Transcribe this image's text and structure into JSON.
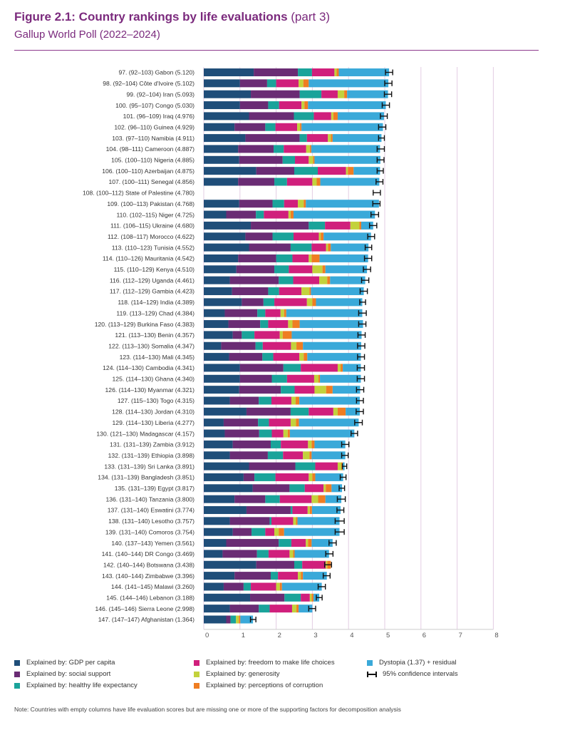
{
  "title": {
    "main": "Figure 2.1: Country rankings by life evaluations",
    "part": "(part 3)",
    "subtitle": "Gallup World Poll (2022–2024)"
  },
  "legend": {
    "items": [
      {
        "label": "Explained by: GDP per capita",
        "color": "#1f4e79"
      },
      {
        "label": "Explained by: social support",
        "color": "#6a2c74"
      },
      {
        "label": "Explained by: healthy life expectancy",
        "color": "#1aa39a"
      },
      {
        "label": "Explained by: freedom to make life choices",
        "color": "#d01f7c"
      },
      {
        "label": "Explained by: generosity",
        "color": "#c3d23c"
      },
      {
        "label": "Explained by: perceptions of corruption",
        "color": "#ef7d22"
      },
      {
        "label": "Dystopia (1.37) + residual",
        "color": "#3aa9d9"
      },
      {
        "label": "95% confidence intervals",
        "color": "#111111"
      }
    ]
  },
  "note": "Note: Countries with empty columns have life evaluation scores but are missing one or more of the supporting factors for decomposition analysis",
  "chart_data": {
    "type": "bar",
    "orientation": "horizontal",
    "stacked": true,
    "xlim": [
      0,
      8
    ],
    "xticks": [
      "0",
      "1",
      "2",
      "3",
      "4",
      "5",
      "6",
      "7",
      "8"
    ],
    "grid": true,
    "legend_placement": "bottom",
    "components": [
      "GDP per capita",
      "social support",
      "healthy life expectancy",
      "freedom to make life choices",
      "generosity",
      "perceptions of corruption",
      "Dystopia (1.37) + residual"
    ],
    "colors": [
      "#1f4e79",
      "#6a2c74",
      "#1aa39a",
      "#d01f7c",
      "#c3d23c",
      "#ef7d22",
      "#3aa9d9"
    ],
    "rows": [
      {
        "label": "97.   (92–103)  Gabon (5.120)",
        "score": 5.12,
        "ci": [
          5.02,
          5.22
        ],
        "parts": [
          1.38,
          1.22,
          0.39,
          0.62,
          0.06,
          0.06,
          1.39
        ]
      },
      {
        "label": "98.   (92–104)  Côte d'Ivoire (5.102)",
        "score": 5.102,
        "ci": [
          5.0,
          5.2
        ],
        "parts": [
          1.0,
          0.75,
          0.25,
          0.62,
          0.13,
          0.15,
          2.2
        ]
      },
      {
        "label": "99.   (92–104)  Iran (5.093)",
        "score": 5.093,
        "ci": [
          4.99,
          5.19
        ],
        "parts": [
          1.3,
          1.35,
          0.6,
          0.45,
          0.18,
          0.08,
          1.13
        ]
      },
      {
        "label": "100.  (95–107)  Congo (5.030)",
        "score": 5.03,
        "ci": [
          4.93,
          5.13
        ],
        "parts": [
          1.0,
          0.78,
          0.3,
          0.62,
          0.08,
          0.1,
          2.15
        ]
      },
      {
        "label": "101.  (96–109)  Iraq (4.976)",
        "score": 4.976,
        "ci": [
          4.88,
          5.07
        ],
        "parts": [
          1.25,
          1.24,
          0.55,
          0.48,
          0.06,
          0.12,
          1.28
        ]
      },
      {
        "label": "102.  (96–110)  Guinea (4.929)",
        "score": 4.929,
        "ci": [
          4.83,
          5.03
        ],
        "parts": [
          0.85,
          0.85,
          0.28,
          0.6,
          0.08,
          0.04,
          2.25
        ]
      },
      {
        "label": "103.  (97–110)  Namibia (4.911)",
        "score": 4.911,
        "ci": [
          4.83,
          4.99
        ],
        "parts": [
          1.15,
          1.5,
          0.2,
          0.58,
          0.08,
          0.05,
          1.35
        ]
      },
      {
        "label": "104.  (98–111)  Cameroon (4.887)",
        "score": 4.887,
        "ci": [
          4.79,
          4.99
        ],
        "parts": [
          0.95,
          0.98,
          0.28,
          0.62,
          0.1,
          0.04,
          1.9
        ]
      },
      {
        "label": "105.  (100–110)  Nigeria (4.885)",
        "score": 4.885,
        "ci": [
          4.79,
          4.98
        ],
        "parts": [
          0.98,
          1.2,
          0.34,
          0.38,
          0.12,
          0.04,
          1.82
        ]
      },
      {
        "label": "106.  (100–110)  Azerbaijan (4.875)",
        "score": 4.875,
        "ci": [
          4.79,
          4.96
        ],
        "parts": [
          1.45,
          1.05,
          0.65,
          0.78,
          0.05,
          0.16,
          0.73
        ]
      },
      {
        "label": "107.  (100–111)  Senegal (4.856)",
        "score": 4.856,
        "ci": [
          4.76,
          4.95
        ],
        "parts": [
          0.95,
          1.0,
          0.35,
          0.7,
          0.12,
          0.1,
          1.63
        ]
      },
      {
        "label": "108.  (100–112)  State of Palestine (4.780)",
        "score": 4.78,
        "ci": [
          4.68,
          4.88
        ],
        "parts": []
      },
      {
        "label": "109.  (100–113)  Pakistan (4.768)",
        "score": 4.768,
        "ci": [
          4.67,
          4.87
        ],
        "parts": [
          0.98,
          0.92,
          0.32,
          0.38,
          0.16,
          0.06,
          2.02
        ]
      },
      {
        "label": "110.  (102–115)  Niger (4.725)",
        "score": 4.725,
        "ci": [
          4.62,
          4.83
        ],
        "parts": [
          0.62,
          0.82,
          0.22,
          0.68,
          0.06,
          0.08,
          2.25
        ]
      },
      {
        "label": "111.  (106–115)  Ukraine (4.680)",
        "score": 4.68,
        "ci": [
          4.58,
          4.78
        ],
        "parts": [
          1.3,
          1.6,
          0.45,
          0.7,
          0.25,
          0.05,
          0.33
        ]
      },
      {
        "label": "112.  (108–117)  Morocco (4.622)",
        "score": 4.622,
        "ci": [
          4.53,
          4.72
        ],
        "parts": [
          1.15,
          0.75,
          0.58,
          0.7,
          0.05,
          0.08,
          1.31
        ]
      },
      {
        "label": "113.  (110–123)  Tunisia (4.552)",
        "score": 4.552,
        "ci": [
          4.46,
          4.64
        ],
        "parts": [
          1.25,
          1.15,
          0.58,
          0.4,
          0.05,
          0.08,
          1.04
        ]
      },
      {
        "label": "114.  (110–126)  Mauritania (4.542)",
        "score": 4.542,
        "ci": [
          4.44,
          4.64
        ],
        "parts": [
          0.95,
          1.05,
          0.45,
          0.45,
          0.08,
          0.22,
          1.34
        ]
      },
      {
        "label": "115.  (110–129)  Kenya (4.510)",
        "score": 4.51,
        "ci": [
          4.41,
          4.61
        ],
        "parts": [
          0.9,
          1.05,
          0.4,
          0.65,
          0.28,
          0.08,
          1.15
        ]
      },
      {
        "label": "116.  (112–129)  Uganda (4.461)",
        "score": 4.461,
        "ci": [
          4.36,
          4.56
        ],
        "parts": [
          0.72,
          1.35,
          0.4,
          0.72,
          0.22,
          0.08,
          0.97
        ]
      },
      {
        "label": "117.  (112–129)  Gambia (4.423)",
        "score": 4.423,
        "ci": [
          4.32,
          4.52
        ],
        "parts": [
          0.78,
          1.0,
          0.3,
          0.62,
          0.22,
          0.04,
          1.46
        ]
      },
      {
        "label": "118.  (114–129)  India (4.389)",
        "score": 4.389,
        "ci": [
          4.31,
          4.47
        ],
        "parts": [
          1.05,
          0.6,
          0.3,
          0.9,
          0.15,
          0.1,
          1.28
        ]
      },
      {
        "label": "119.  (113–129)  Chad (4.384)",
        "score": 4.384,
        "ci": [
          4.28,
          4.49
        ],
        "parts": [
          0.58,
          0.9,
          0.22,
          0.42,
          0.1,
          0.06,
          2.1
        ]
      },
      {
        "label": "120.  (113–129)  Burkina Faso (4.383)",
        "score": 4.383,
        "ci": [
          4.28,
          4.48
        ],
        "parts": [
          0.68,
          0.88,
          0.22,
          0.55,
          0.12,
          0.2,
          1.75
        ]
      },
      {
        "label": "121.  (113–130)  Benin (4.357)",
        "score": 4.357,
        "ci": [
          4.26,
          4.46
        ],
        "parts": [
          0.8,
          0.25,
          0.35,
          0.7,
          0.08,
          0.25,
          1.93
        ]
      },
      {
        "label": "122.  (113–130)  Somalia (4.347)",
        "score": 4.347,
        "ci": [
          4.25,
          4.45
        ],
        "parts": [
          0.48,
          0.95,
          0.2,
          0.78,
          0.15,
          0.18,
          1.61
        ]
      },
      {
        "label": "123.  (114–130)  Mali (4.345)",
        "score": 4.345,
        "ci": [
          4.25,
          4.44
        ],
        "parts": [
          0.7,
          0.92,
          0.3,
          0.72,
          0.12,
          0.1,
          1.48
        ]
      },
      {
        "label": "124.  (114–130)  Cambodia (4.341)",
        "score": 4.341,
        "ci": [
          4.24,
          4.44
        ],
        "parts": [
          1.0,
          1.2,
          0.48,
          1.02,
          0.08,
          0.06,
          0.5
        ]
      },
      {
        "label": "125.  (114–130)  Ghana (4.340)",
        "score": 4.34,
        "ci": [
          4.24,
          4.44
        ],
        "parts": [
          1.0,
          0.88,
          0.42,
          0.75,
          0.12,
          0.04,
          1.13
        ]
      },
      {
        "label": "126.  (114–130)  Myanmar (4.321)",
        "score": 4.321,
        "ci": [
          4.22,
          4.42
        ],
        "parts": [
          0.98,
          1.15,
          0.38,
          0.55,
          0.32,
          0.18,
          0.76
        ]
      },
      {
        "label": "127.  (115–130)  Togo (4.315)",
        "score": 4.315,
        "ci": [
          4.22,
          4.41
        ],
        "parts": [
          0.72,
          0.8,
          0.35,
          0.55,
          0.12,
          0.1,
          1.67
        ]
      },
      {
        "label": "128.  (114–130)  Jordan (4.310)",
        "score": 4.31,
        "ci": [
          4.21,
          4.41
        ],
        "parts": [
          1.18,
          1.22,
          0.5,
          0.68,
          0.12,
          0.22,
          0.39
        ]
      },
      {
        "label": "129.  (114–130)  Liberia (4.277)",
        "score": 4.277,
        "ci": [
          4.17,
          4.38
        ],
        "parts": [
          0.55,
          0.95,
          0.3,
          0.6,
          0.15,
          0.08,
          1.65
        ]
      },
      {
        "label": "130.  (121–130)  Madagascar (4.157)",
        "score": 4.157,
        "ci": [
          4.07,
          4.25
        ],
        "parts": [
          0.58,
          0.95,
          0.35,
          0.32,
          0.12,
          0.06,
          1.78
        ]
      },
      {
        "label": "131.  (131–139)  Zambia (3.912)",
        "score": 3.912,
        "ci": [
          3.81,
          4.01
        ],
        "parts": [
          0.8,
          1.05,
          0.28,
          0.75,
          0.1,
          0.08,
          0.85
        ]
      },
      {
        "label": "132.  (131–139)  Ethiopia (3.898)",
        "score": 3.898,
        "ci": [
          3.81,
          3.99
        ],
        "parts": [
          0.72,
          1.05,
          0.42,
          0.55,
          0.18,
          0.06,
          0.93
        ]
      },
      {
        "label": "133.  (131–139)  Sri Lanka (3.891)",
        "score": 3.891,
        "ci": [
          3.83,
          3.95
        ],
        "parts": [
          1.25,
          1.28,
          0.55,
          0.62,
          0.1,
          0.04,
          0.05
        ]
      },
      {
        "label": "134.  (131–139)  Bangladesh (3.851)",
        "score": 3.851,
        "ci": [
          3.77,
          3.93
        ],
        "parts": [
          1.1,
          0.3,
          0.58,
          0.92,
          0.1,
          0.08,
          0.77
        ]
      },
      {
        "label": "135.  (131–139)  Egypt (3.817)",
        "score": 3.817,
        "ci": [
          3.74,
          3.89
        ],
        "parts": [
          1.35,
          1.02,
          0.42,
          0.52,
          0.06,
          0.16,
          0.29
        ]
      },
      {
        "label": "136.  (131–140)  Tanzania (3.800)",
        "score": 3.8,
        "ci": [
          3.69,
          3.91
        ],
        "parts": [
          0.85,
          0.85,
          0.4,
          0.88,
          0.18,
          0.2,
          0.44
        ]
      },
      {
        "label": "137.  (131–140)  Eswatini (3.774)",
        "score": 3.774,
        "ci": [
          3.68,
          3.87
        ],
        "parts": [
          1.18,
          1.22,
          0.05,
          0.42,
          0.06,
          0.06,
          0.79
        ]
      },
      {
        "label": "138.  (131–140)  Lesotho (3.757)",
        "score": 3.757,
        "ci": [
          3.63,
          3.88
        ],
        "parts": [
          0.72,
          1.1,
          0.05,
          0.6,
          0.08,
          0.04,
          1.16
        ]
      },
      {
        "label": "139.  (131–140)  Comoros (3.754)",
        "score": 3.754,
        "ci": [
          3.63,
          3.88
        ],
        "parts": [
          0.8,
          0.52,
          0.38,
          0.25,
          0.12,
          0.15,
          1.53
        ]
      },
      {
        "label": "140.  (137–143)  Yemen (3.561)",
        "score": 3.561,
        "ci": [
          3.46,
          3.66
        ],
        "parts": [
          0.62,
          1.45,
          0.35,
          0.4,
          0.06,
          0.1,
          0.58
        ]
      },
      {
        "label": "141.  (140–144)  DR Congo (3.469)",
        "score": 3.469,
        "ci": [
          3.37,
          3.57
        ],
        "parts": [
          0.52,
          0.95,
          0.32,
          0.58,
          0.1,
          0.04,
          0.95
        ]
      },
      {
        "label": "142.  (140–144)  Botswana (3.438)",
        "score": 3.438,
        "ci": [
          3.34,
          3.53
        ],
        "parts": [
          1.45,
          1.05,
          0.22,
          0.65,
          0.04,
          0.1,
          -0.08
        ]
      },
      {
        "label": "143.  (140–144)  Zimbabwe (3.396)",
        "score": 3.396,
        "ci": [
          3.3,
          3.49
        ],
        "parts": [
          0.85,
          1.0,
          0.2,
          0.55,
          0.08,
          0.06,
          0.66
        ]
      },
      {
        "label": "144.  (141–145)  Malawi (3.260)",
        "score": 3.26,
        "ci": [
          3.16,
          3.36
        ],
        "parts": [
          0.55,
          0.55,
          0.2,
          0.7,
          0.1,
          0.06,
          1.1
        ]
      },
      {
        "label": "145.  (144–146)  Lebanon (3.188)",
        "score": 3.188,
        "ci": [
          3.11,
          3.27
        ],
        "parts": [
          1.28,
          0.95,
          0.45,
          0.25,
          0.05,
          0.05,
          0.16
        ]
      },
      {
        "label": "146.  (145–146)  Sierra Leone (2.998)",
        "score": 2.998,
        "ci": [
          2.9,
          3.09
        ],
        "parts": [
          0.72,
          0.8,
          0.3,
          0.62,
          0.12,
          0.06,
          0.38
        ]
      },
      {
        "label": "147.  (147–147)  Afghanistan (1.364)",
        "score": 1.364,
        "ci": [
          1.29,
          1.44
        ],
        "parts": [
          0.62,
          0.12,
          0.15,
          0.0,
          0.08,
          0.04,
          0.35
        ]
      }
    ]
  }
}
